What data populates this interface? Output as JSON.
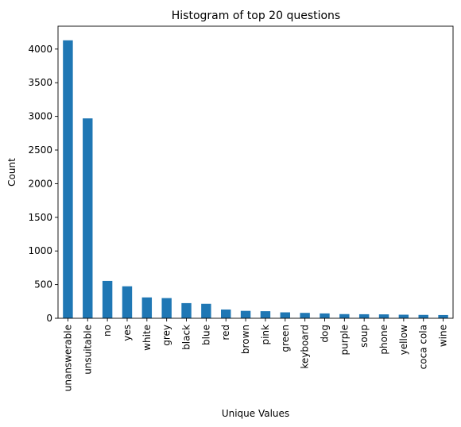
{
  "chart_data": {
    "type": "bar",
    "title": "Histogram of top 20 questions",
    "xlabel": "Unique Values",
    "ylabel": "Count",
    "ylim": [
      0,
      4340
    ],
    "yticks": [
      0,
      500,
      1000,
      1500,
      2000,
      2500,
      3000,
      3500,
      4000
    ],
    "grid": false,
    "bar_color": "#1f77b4",
    "categories": [
      "unanswerable",
      "unsuitable",
      "no",
      "yes",
      "white",
      "grey",
      "black",
      "blue",
      "red",
      "brown",
      "pink",
      "green",
      "keyboard",
      "dog",
      "purple",
      "soup",
      "phone",
      "yellow",
      "coca cola",
      "wine"
    ],
    "values": [
      4130,
      2970,
      555,
      475,
      310,
      300,
      225,
      215,
      130,
      110,
      105,
      88,
      80,
      72,
      62,
      60,
      58,
      53,
      50,
      48
    ]
  }
}
